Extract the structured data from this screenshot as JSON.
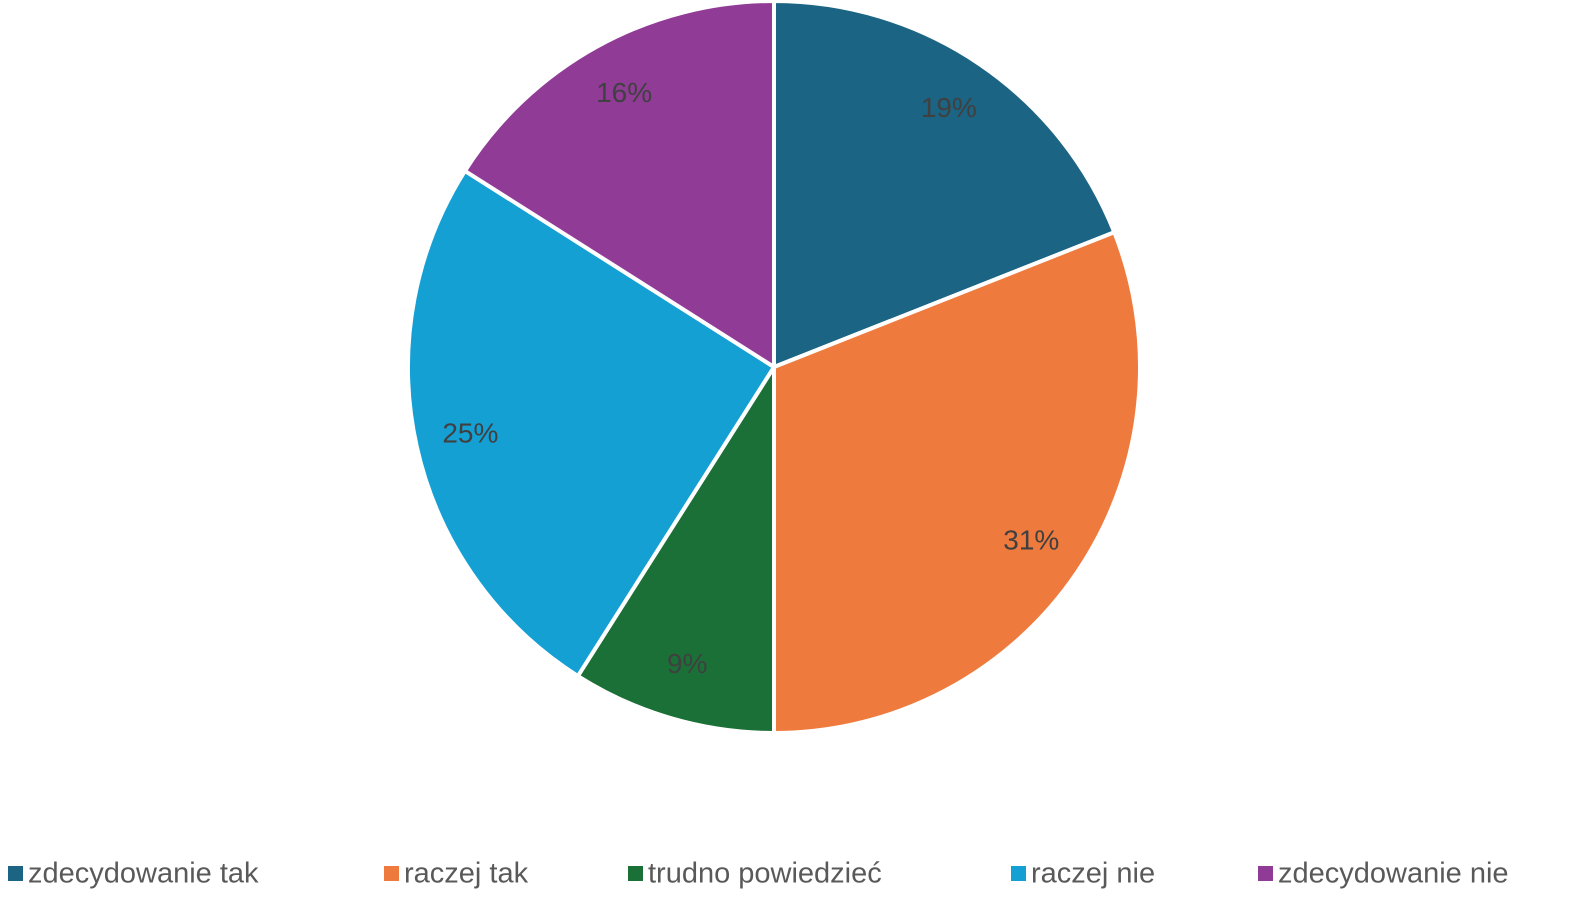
{
  "chart_data": {
    "type": "pie",
    "categories": [
      "zdecydowanie tak",
      "raczej tak",
      "trudno powiedzieć",
      "raczej nie",
      "zdecydowanie nie"
    ],
    "values": [
      19,
      31,
      9,
      25,
      16
    ],
    "value_labels": [
      "19%",
      "31%",
      "9%",
      "25%",
      "16%"
    ],
    "colors": [
      "#1b6483",
      "#ee7a3e",
      "#1a7036",
      "#15a0d4",
      "#903c96"
    ],
    "legend": "bottom"
  }
}
